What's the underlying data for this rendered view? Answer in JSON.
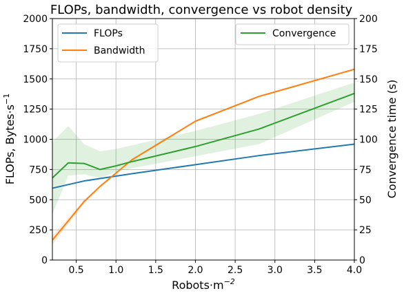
{
  "chart_data": {
    "type": "line",
    "title": "FLOPs, bandwidth, convergence vs robot density",
    "xlabel": "Robots·m",
    "xlabel_superscript": "−2",
    "ylabel_left": "FLOPs, Bytes·s",
    "ylabel_left_superscript": "−1",
    "ylabel_right": "Convergence time (s)",
    "xlim": [
      0.2,
      4.0
    ],
    "ylim_left": [
      0,
      2000
    ],
    "ylim_right": [
      0,
      200
    ],
    "grid": true,
    "x_ticks": [
      "0.5",
      "1.0",
      "1.5",
      "2.0",
      "2.5",
      "3.0",
      "3.5",
      "4.0"
    ],
    "x_tick_values": [
      0.5,
      1.0,
      1.5,
      2.0,
      2.5,
      3.0,
      3.5,
      4.0
    ],
    "y_left_ticks": [
      "0",
      "250",
      "500",
      "750",
      "1000",
      "1250",
      "1500",
      "1750",
      "2000"
    ],
    "y_left_tick_values": [
      0,
      250,
      500,
      750,
      1000,
      1250,
      1500,
      1750,
      2000
    ],
    "y_right_ticks": [
      "0",
      "25",
      "50",
      "75",
      "100",
      "125",
      "150",
      "175",
      "200"
    ],
    "y_right_tick_values": [
      0,
      25,
      50,
      75,
      100,
      125,
      150,
      175,
      200
    ],
    "legend_left": {
      "placement": "upper-left",
      "entries": [
        "FLOPs",
        "Bandwidth"
      ]
    },
    "legend_right": {
      "placement": "upper-right",
      "entries": [
        "Convergence"
      ]
    },
    "series": [
      {
        "name": "FLOPs",
        "axis": "left",
        "color": "#1f77b4",
        "x": [
          0.2,
          0.4,
          0.6,
          0.8,
          1.0,
          1.2,
          2.0,
          2.8,
          4.0
        ],
        "y": [
          595,
          625,
          655,
          675,
          695,
          715,
          790,
          865,
          960
        ]
      },
      {
        "name": "Bandwidth",
        "axis": "left",
        "color": "#ff7f0e",
        "x": [
          0.2,
          0.4,
          0.6,
          0.8,
          1.0,
          1.2,
          2.0,
          2.8,
          4.0
        ],
        "y": [
          165,
          325,
          485,
          610,
          720,
          830,
          1150,
          1355,
          1580
        ],
        "band_lower": [
          125,
          300,
          470,
          600,
          712,
          822,
          1142,
          1348,
          1572
        ],
        "band_upper": [
          205,
          350,
          500,
          620,
          728,
          838,
          1158,
          1362,
          1588
        ]
      },
      {
        "name": "Convergence",
        "axis": "right",
        "color": "#2ca02c",
        "x": [
          0.2,
          0.4,
          0.6,
          0.8,
          1.0,
          1.2,
          2.0,
          2.8,
          4.0
        ],
        "y": [
          68,
          80.5,
          80,
          75,
          78,
          81.5,
          94,
          108.5,
          138
        ],
        "band_lower": [
          38,
          70,
          71,
          68,
          73,
          76,
          86,
          96,
          131
        ],
        "band_upper": [
          98,
          111,
          96,
          90,
          92,
          95,
          107,
          121,
          147
        ]
      }
    ]
  }
}
